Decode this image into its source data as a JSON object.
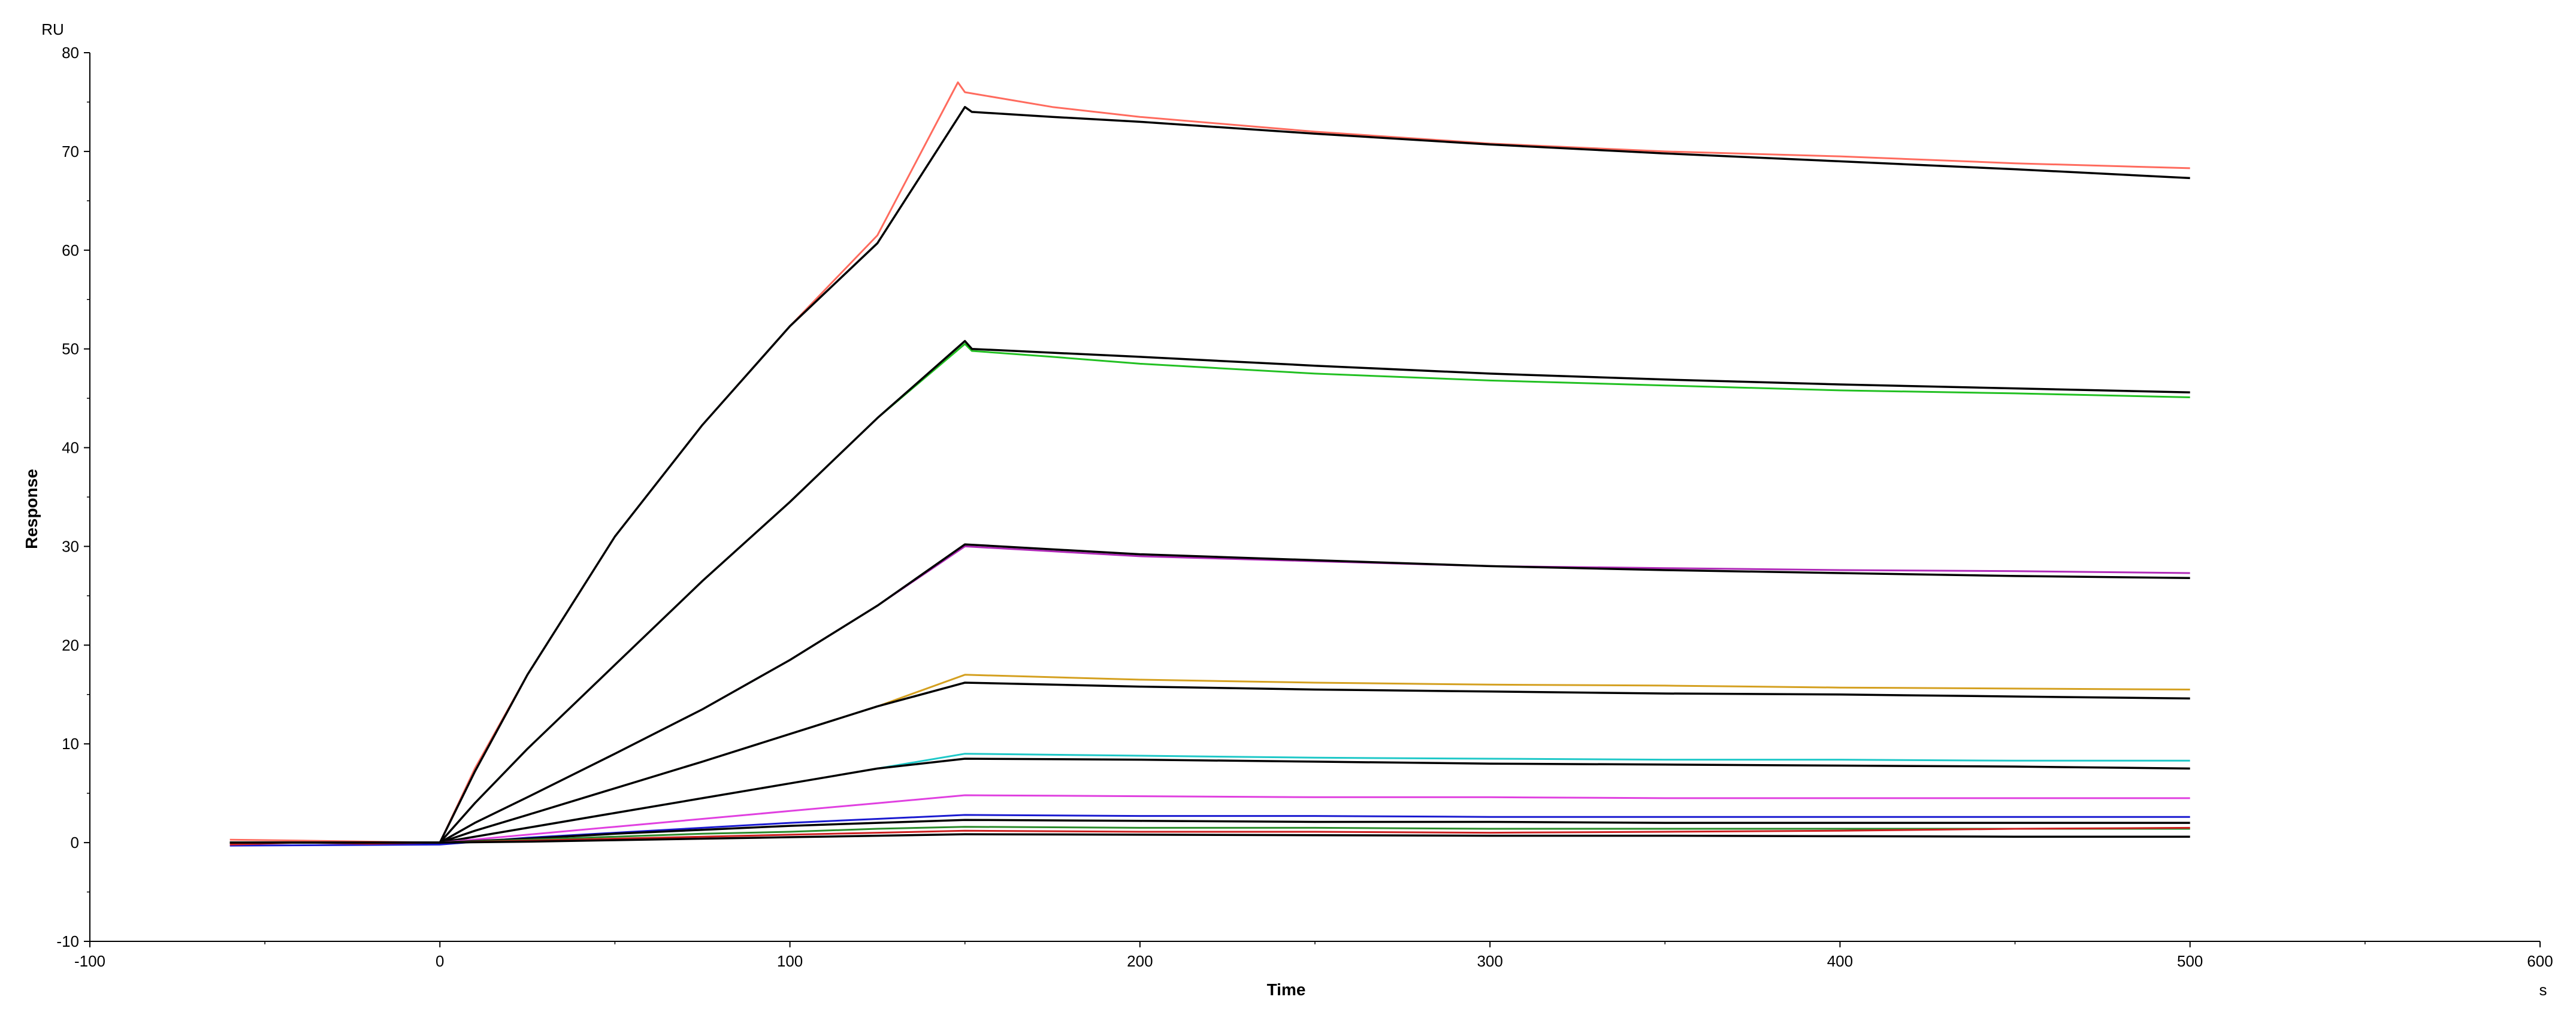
{
  "chart_data": {
    "type": "line",
    "xlabel": "Time",
    "ylabel": "Response",
    "x_unit": "s",
    "y_unit": "RU",
    "xlim": [
      -100,
      600
    ],
    "ylim": [
      -10,
      80
    ],
    "x_ticks": [
      -100,
      0,
      100,
      200,
      300,
      400,
      500,
      600
    ],
    "y_ticks": [
      -10,
      0,
      10,
      20,
      30,
      40,
      50,
      60,
      70,
      80
    ],
    "grid": false,
    "legend": "none",
    "fit_color": "#000000",
    "series": [
      {
        "color": "#ff6b5e",
        "points": [
          [
            -60,
            0.3
          ],
          [
            -40,
            0.2
          ],
          [
            -20,
            0.1
          ],
          [
            0,
            0
          ],
          [
            10,
            7.5
          ],
          [
            25,
            17
          ],
          [
            50,
            31
          ],
          [
            75,
            42.3
          ],
          [
            100,
            52.3
          ],
          [
            125,
            61.5
          ],
          [
            148,
            77
          ],
          [
            150,
            76
          ],
          [
            175,
            74.5
          ],
          [
            200,
            73.5
          ],
          [
            250,
            72
          ],
          [
            300,
            70.8
          ],
          [
            350,
            70
          ],
          [
            400,
            69.5
          ],
          [
            450,
            68.8
          ],
          [
            500,
            68.3
          ]
        ]
      },
      {
        "color": "#000000",
        "points": [
          [
            -60,
            0
          ],
          [
            0,
            0
          ],
          [
            10,
            7.2
          ],
          [
            25,
            17
          ],
          [
            50,
            31
          ],
          [
            75,
            42.3
          ],
          [
            100,
            52.3
          ],
          [
            125,
            60.7
          ],
          [
            150,
            74.5
          ],
          [
            152,
            74
          ],
          [
            175,
            73.5
          ],
          [
            200,
            73
          ],
          [
            250,
            71.8
          ],
          [
            300,
            70.7
          ],
          [
            350,
            69.8
          ],
          [
            400,
            69
          ],
          [
            450,
            68.2
          ],
          [
            500,
            67.3
          ]
        ]
      },
      {
        "color": "#22c022",
        "points": [
          [
            -60,
            0
          ],
          [
            0,
            0
          ],
          [
            10,
            4
          ],
          [
            25,
            9.5
          ],
          [
            50,
            18
          ],
          [
            75,
            26.5
          ],
          [
            100,
            34.5
          ],
          [
            125,
            43
          ],
          [
            150,
            50.5
          ],
          [
            152,
            49.8
          ],
          [
            175,
            49.2
          ],
          [
            200,
            48.5
          ],
          [
            250,
            47.5
          ],
          [
            300,
            46.8
          ],
          [
            350,
            46.3
          ],
          [
            400,
            45.8
          ],
          [
            450,
            45.5
          ],
          [
            500,
            45.1
          ]
        ]
      },
      {
        "color": "#000000",
        "points": [
          [
            -60,
            0
          ],
          [
            0,
            0
          ],
          [
            10,
            4
          ],
          [
            25,
            9.5
          ],
          [
            50,
            18
          ],
          [
            75,
            26.5
          ],
          [
            100,
            34.5
          ],
          [
            125,
            43
          ],
          [
            150,
            50.8
          ],
          [
            152,
            50
          ],
          [
            200,
            49.2
          ],
          [
            250,
            48.3
          ],
          [
            300,
            47.5
          ],
          [
            350,
            46.9
          ],
          [
            400,
            46.4
          ],
          [
            450,
            46
          ],
          [
            500,
            45.6
          ]
        ]
      },
      {
        "color": "#b02ab8",
        "points": [
          [
            -60,
            0
          ],
          [
            0,
            0
          ],
          [
            10,
            2
          ],
          [
            25,
            4.6
          ],
          [
            50,
            9
          ],
          [
            75,
            13.5
          ],
          [
            100,
            18.5
          ],
          [
            125,
            24
          ],
          [
            150,
            30
          ],
          [
            200,
            29
          ],
          [
            250,
            28.5
          ],
          [
            300,
            28
          ],
          [
            350,
            27.8
          ],
          [
            400,
            27.6
          ],
          [
            450,
            27.5
          ],
          [
            500,
            27.3
          ]
        ]
      },
      {
        "color": "#000000",
        "points": [
          [
            -60,
            0
          ],
          [
            0,
            0
          ],
          [
            10,
            2
          ],
          [
            25,
            4.6
          ],
          [
            50,
            9
          ],
          [
            75,
            13.5
          ],
          [
            100,
            18.5
          ],
          [
            125,
            24
          ],
          [
            150,
            30.2
          ],
          [
            200,
            29.2
          ],
          [
            250,
            28.6
          ],
          [
            300,
            28
          ],
          [
            350,
            27.6
          ],
          [
            400,
            27.3
          ],
          [
            450,
            27
          ],
          [
            500,
            26.8
          ]
        ]
      },
      {
        "color": "#d4a020",
        "points": [
          [
            -60,
            0
          ],
          [
            0,
            0
          ],
          [
            10,
            1.2
          ],
          [
            25,
            2.8
          ],
          [
            50,
            5.5
          ],
          [
            75,
            8.2
          ],
          [
            100,
            11
          ],
          [
            125,
            13.8
          ],
          [
            150,
            17
          ],
          [
            200,
            16.5
          ],
          [
            250,
            16.2
          ],
          [
            300,
            16
          ],
          [
            350,
            15.9
          ],
          [
            400,
            15.7
          ],
          [
            450,
            15.6
          ],
          [
            500,
            15.5
          ]
        ]
      },
      {
        "color": "#000000",
        "points": [
          [
            -60,
            0
          ],
          [
            0,
            0
          ],
          [
            10,
            1.2
          ],
          [
            25,
            2.8
          ],
          [
            50,
            5.5
          ],
          [
            75,
            8.2
          ],
          [
            100,
            11
          ],
          [
            125,
            13.8
          ],
          [
            150,
            16.2
          ],
          [
            200,
            15.8
          ],
          [
            250,
            15.5
          ],
          [
            300,
            15.3
          ],
          [
            350,
            15.1
          ],
          [
            400,
            15
          ],
          [
            450,
            14.8
          ],
          [
            500,
            14.6
          ]
        ]
      },
      {
        "color": "#1fc8c8",
        "points": [
          [
            -60,
            0
          ],
          [
            0,
            0
          ],
          [
            25,
            1.5
          ],
          [
            50,
            3
          ],
          [
            75,
            4.5
          ],
          [
            100,
            6
          ],
          [
            125,
            7.5
          ],
          [
            150,
            9
          ],
          [
            200,
            8.8
          ],
          [
            250,
            8.6
          ],
          [
            300,
            8.5
          ],
          [
            350,
            8.4
          ],
          [
            400,
            8.4
          ],
          [
            450,
            8.3
          ],
          [
            500,
            8.3
          ]
        ]
      },
      {
        "color": "#000000",
        "points": [
          [
            -60,
            0
          ],
          [
            0,
            0
          ],
          [
            25,
            1.5
          ],
          [
            50,
            3
          ],
          [
            75,
            4.5
          ],
          [
            100,
            6
          ],
          [
            125,
            7.5
          ],
          [
            150,
            8.5
          ],
          [
            200,
            8.4
          ],
          [
            250,
            8.2
          ],
          [
            300,
            8
          ],
          [
            350,
            7.9
          ],
          [
            400,
            7.8
          ],
          [
            450,
            7.7
          ],
          [
            500,
            7.5
          ]
        ]
      },
      {
        "color": "#e040e0",
        "points": [
          [
            -60,
            0
          ],
          [
            0,
            0
          ],
          [
            25,
            0.8
          ],
          [
            50,
            1.6
          ],
          [
            75,
            2.4
          ],
          [
            100,
            3.2
          ],
          [
            125,
            4
          ],
          [
            150,
            4.8
          ],
          [
            200,
            4.7
          ],
          [
            250,
            4.6
          ],
          [
            300,
            4.6
          ],
          [
            350,
            4.5
          ],
          [
            400,
            4.5
          ],
          [
            450,
            4.5
          ],
          [
            500,
            4.5
          ]
        ]
      },
      {
        "color": "#1a1ad0",
        "points": [
          [
            -60,
            -0.3
          ],
          [
            0,
            -0.2
          ],
          [
            25,
            0.5
          ],
          [
            50,
            1
          ],
          [
            75,
            1.5
          ],
          [
            100,
            2
          ],
          [
            125,
            2.4
          ],
          [
            150,
            2.8
          ],
          [
            200,
            2.7
          ],
          [
            250,
            2.7
          ],
          [
            300,
            2.6
          ],
          [
            350,
            2.6
          ],
          [
            400,
            2.6
          ],
          [
            450,
            2.6
          ],
          [
            500,
            2.6
          ]
        ]
      },
      {
        "color": "#000000",
        "points": [
          [
            -60,
            0
          ],
          [
            0,
            0
          ],
          [
            25,
            0.4
          ],
          [
            50,
            0.9
          ],
          [
            75,
            1.3
          ],
          [
            100,
            1.7
          ],
          [
            125,
            2
          ],
          [
            150,
            2.3
          ],
          [
            200,
            2.2
          ],
          [
            250,
            2.1
          ],
          [
            300,
            2.1
          ],
          [
            350,
            2
          ],
          [
            400,
            2
          ],
          [
            450,
            2
          ],
          [
            500,
            2
          ]
        ]
      },
      {
        "color": "#2a8a2a",
        "points": [
          [
            -60,
            0
          ],
          [
            0,
            0
          ],
          [
            25,
            0.3
          ],
          [
            50,
            0.6
          ],
          [
            75,
            0.9
          ],
          [
            100,
            1.1
          ],
          [
            125,
            1.4
          ],
          [
            150,
            1.6
          ],
          [
            200,
            1.5
          ],
          [
            250,
            1.5
          ],
          [
            300,
            1.4
          ],
          [
            350,
            1.4
          ],
          [
            400,
            1.4
          ],
          [
            450,
            1.4
          ],
          [
            500,
            1.4
          ]
        ]
      },
      {
        "color": "#cc1f1f",
        "points": [
          [
            -60,
            -0.2
          ],
          [
            -40,
            0
          ],
          [
            -20,
            -0.1
          ],
          [
            0,
            0
          ],
          [
            25,
            0.2
          ],
          [
            50,
            0.4
          ],
          [
            75,
            0.6
          ],
          [
            100,
            0.8
          ],
          [
            125,
            1
          ],
          [
            150,
            1.2
          ],
          [
            200,
            1.1
          ],
          [
            250,
            1.1
          ],
          [
            300,
            1
          ],
          [
            350,
            1.1
          ],
          [
            400,
            1.2
          ],
          [
            450,
            1.4
          ],
          [
            500,
            1.5
          ]
        ]
      },
      {
        "color": "#000000",
        "points": [
          [
            -60,
            0
          ],
          [
            0,
            0
          ],
          [
            25,
            0.1
          ],
          [
            50,
            0.25
          ],
          [
            75,
            0.4
          ],
          [
            100,
            0.55
          ],
          [
            125,
            0.7
          ],
          [
            150,
            0.85
          ],
          [
            200,
            0.8
          ],
          [
            250,
            0.75
          ],
          [
            300,
            0.7
          ],
          [
            350,
            0.7
          ],
          [
            400,
            0.65
          ],
          [
            450,
            0.6
          ],
          [
            500,
            0.6
          ]
        ]
      }
    ]
  }
}
